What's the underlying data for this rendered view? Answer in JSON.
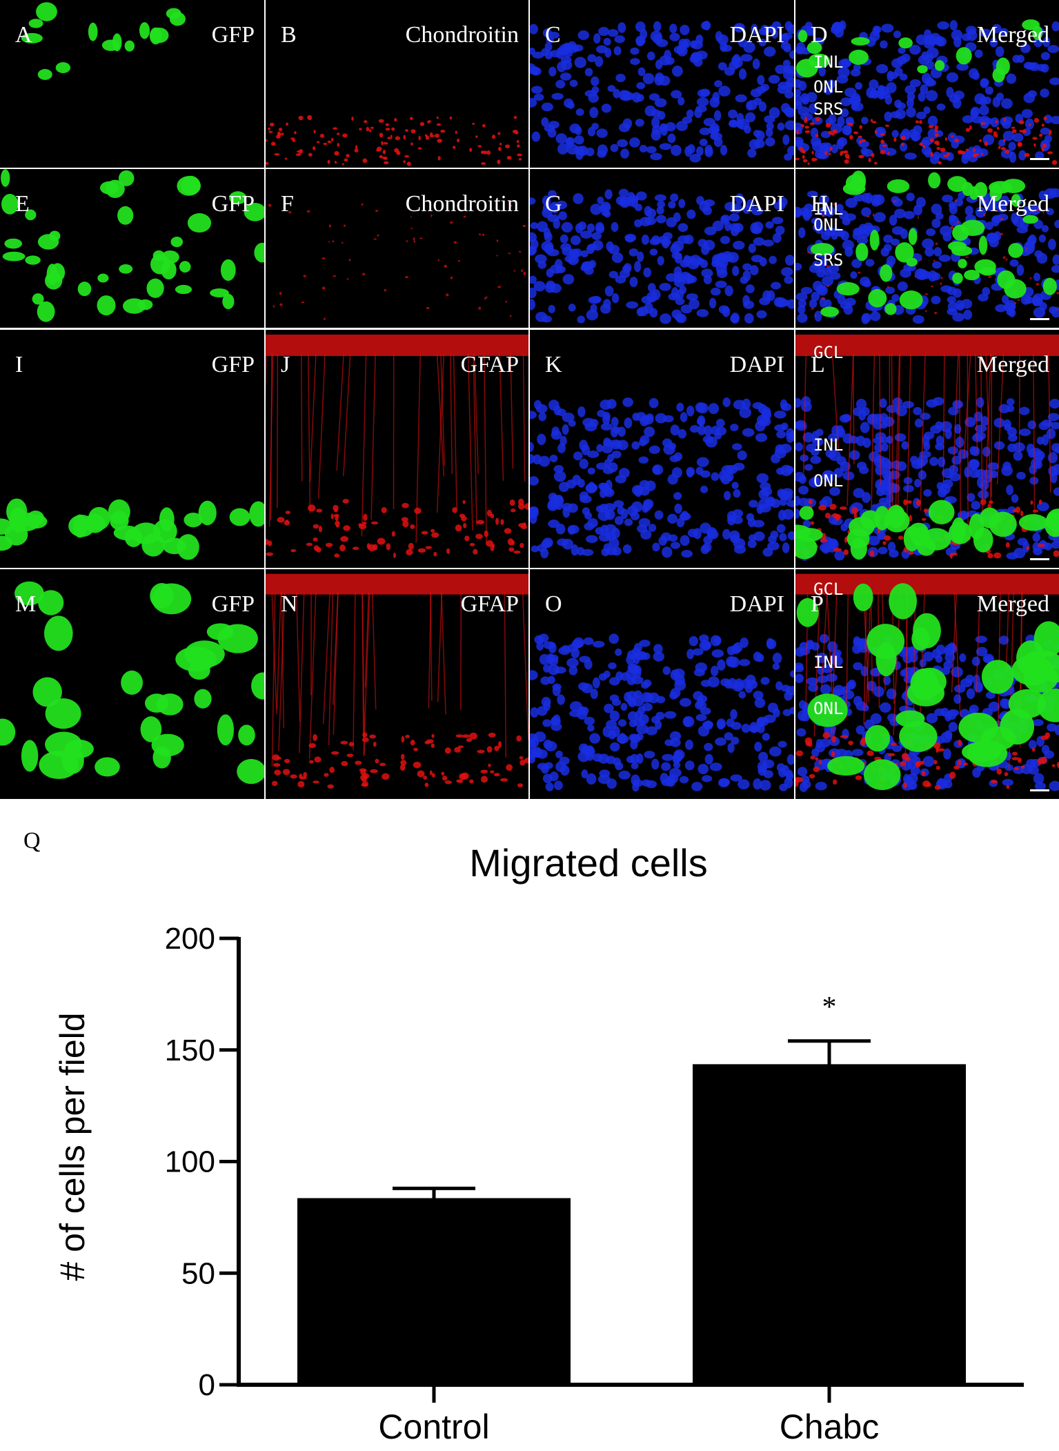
{
  "figure": {
    "rows": [
      {
        "panels": [
          {
            "letter": "A",
            "name": "GFP",
            "channel": "green"
          },
          {
            "letter": "B",
            "name": "Chondroitin",
            "channel": "red"
          },
          {
            "letter": "C",
            "name": "DAPI",
            "channel": "blue"
          },
          {
            "letter": "D",
            "name": "Merged",
            "channel": "merged",
            "layers": [
              "INL",
              "ONL",
              "SRS"
            ]
          }
        ]
      },
      {
        "panels": [
          {
            "letter": "E",
            "name": "GFP",
            "channel": "green"
          },
          {
            "letter": "F",
            "name": "Chondroitin",
            "channel": "red"
          },
          {
            "letter": "G",
            "name": "DAPI",
            "channel": "blue"
          },
          {
            "letter": "H",
            "name": "Merged",
            "channel": "merged",
            "layers": [
              "INL",
              "ONL",
              "SRS"
            ]
          }
        ]
      },
      {
        "panels": [
          {
            "letter": "I",
            "name": "GFP",
            "channel": "green"
          },
          {
            "letter": "J",
            "name": "GFAP",
            "channel": "red"
          },
          {
            "letter": "K",
            "name": "DAPI",
            "channel": "blue"
          },
          {
            "letter": "L",
            "name": "Merged",
            "channel": "merged",
            "layers": [
              "GCL",
              "INL",
              "ONL"
            ]
          }
        ]
      },
      {
        "panels": [
          {
            "letter": "M",
            "name": "GFP",
            "channel": "green"
          },
          {
            "letter": "N",
            "name": "GFAP",
            "channel": "red"
          },
          {
            "letter": "O",
            "name": "DAPI",
            "channel": "blue"
          },
          {
            "letter": "P",
            "name": "Merged",
            "channel": "merged",
            "layers": [
              "GCL",
              "INL",
              "ONL"
            ]
          }
        ]
      }
    ],
    "chart_label": "Q",
    "colors": {
      "green": "#22e01e",
      "red": "#e01010",
      "blue": "#1a2ee0"
    }
  },
  "chart_data": {
    "type": "bar",
    "title": "Migrated cells",
    "ylabel": "# of cells per field",
    "xlabel": "",
    "categories": [
      "Control",
      "Chabc"
    ],
    "values": [
      83,
      143
    ],
    "errors": [
      5,
      11
    ],
    "significance": [
      "",
      "*"
    ],
    "ylim": [
      0,
      200
    ],
    "yticks": [
      0,
      50,
      100,
      150,
      200
    ],
    "grid": false,
    "bar_color": "#000000"
  }
}
